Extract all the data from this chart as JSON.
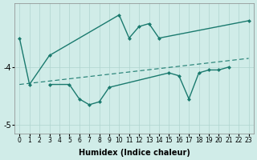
{
  "xlabel": "Humidex (Indice chaleur)",
  "curve1_x": [
    0,
    1,
    3,
    10,
    11,
    12,
    13,
    14,
    23
  ],
  "curve1_y": [
    -3.5,
    -4.3,
    -3.8,
    -3.1,
    -3.5,
    -3.3,
    -3.25,
    -3.5,
    -3.2
  ],
  "curve2_x": [
    3,
    5,
    6,
    7,
    8,
    9,
    15,
    16,
    17,
    18,
    19,
    20,
    21
  ],
  "curve2_y": [
    -4.3,
    -4.3,
    -4.55,
    -4.65,
    -4.6,
    -4.35,
    -4.1,
    -4.15,
    -4.55,
    -4.1,
    -4.05,
    -4.05,
    -4.0
  ],
  "trend_x": [
    0,
    23
  ],
  "trend_y": [
    -4.3,
    -3.85
  ],
  "color": "#1a7a6e",
  "bg_color": "#d0ece8",
  "grid_color": "#b0d4cf",
  "ylim": [
    -5.15,
    -2.9
  ],
  "xlim": [
    -0.5,
    23.5
  ],
  "yticks": [
    -5,
    -4
  ],
  "xticks": [
    0,
    1,
    2,
    3,
    4,
    5,
    6,
    7,
    8,
    9,
    10,
    11,
    12,
    13,
    14,
    15,
    16,
    17,
    18,
    19,
    20,
    21,
    22,
    23
  ]
}
